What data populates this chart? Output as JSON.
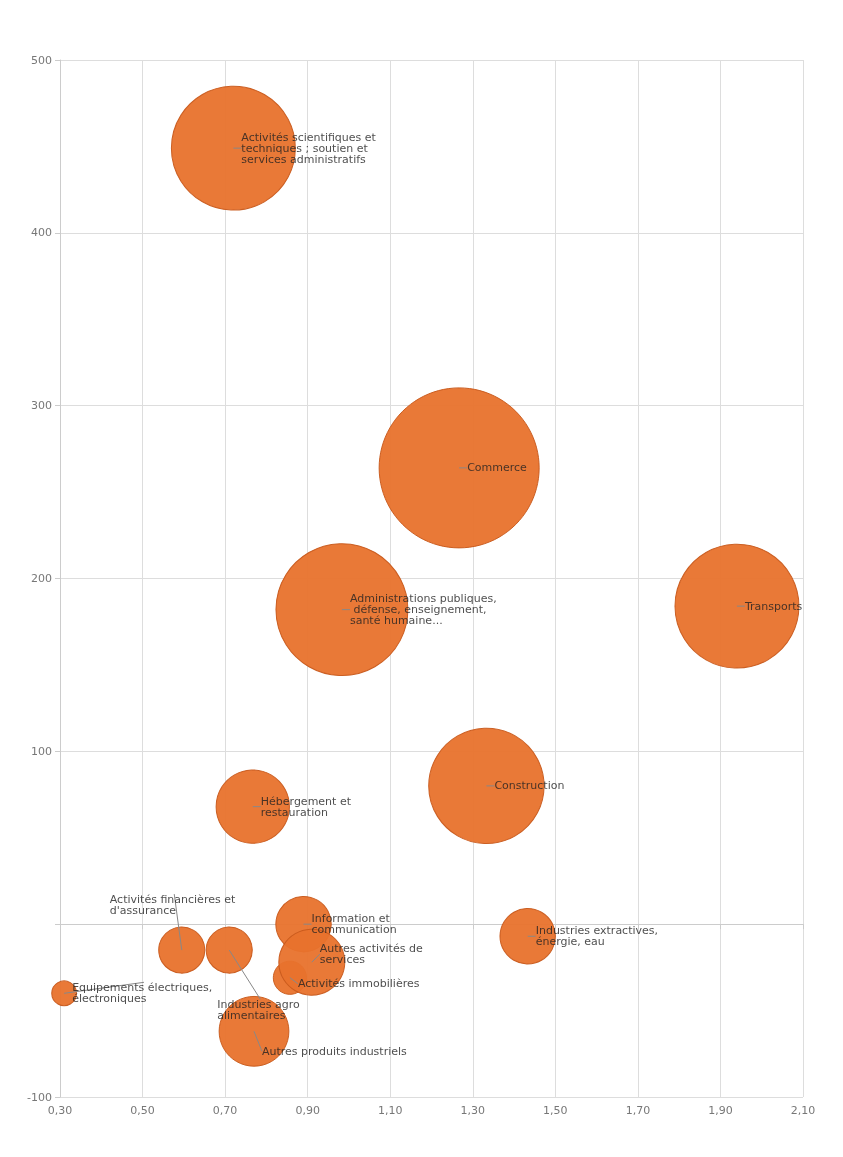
{
  "chart_data": {
    "type": "bubble",
    "x": [
      0.31,
      0.595,
      0.71,
      0.77,
      0.767,
      0.857,
      0.89,
      0.91,
      0.983,
      1.267,
      1.333,
      1.433,
      1.94,
      0.72
    ],
    "series": [
      {
        "color": "#e8722c",
        "values": [
          -40,
          -15,
          -15,
          -62,
          68,
          -31,
          0,
          -22,
          182,
          264,
          80,
          -7,
          184,
          449
        ],
        "sizes": [
          0.024,
          0.083,
          0.083,
          0.19,
          0.21,
          0.043,
          0.12,
          0.17,
          0.68,
          1,
          0.52,
          0.12,
          0.6,
          0.6
        ]
      }
    ],
    "xlim": [
      0.3,
      2.1
    ],
    "xticks": [
      {
        "value": 0.3,
        "label": "0,30"
      },
      {
        "value": 0.5,
        "label": "0,50"
      },
      {
        "value": 0.7,
        "label": "0,70"
      },
      {
        "value": 0.9,
        "label": "0,90"
      },
      {
        "value": 1.1,
        "label": "1,10"
      },
      {
        "value": 1.3,
        "label": "1,30"
      },
      {
        "value": 1.5,
        "label": "1,50"
      },
      {
        "value": 1.7,
        "label": "1,70"
      },
      {
        "value": 1.9,
        "label": "1,90"
      },
      {
        "value": 2.1,
        "label": "2,10"
      }
    ],
    "ylim": [
      -100,
      500
    ],
    "yticks": [
      -100,
      {
        "value": 0,
        "label": null
      },
      100,
      200,
      300,
      400,
      500
    ],
    "grid": true,
    "annotations": [
      {
        "text": "Equipements électriques, électroniques",
        "x": 0.31,
        "y": -40
      },
      {
        "text": "Activités financières et d'assurance",
        "x": 0.595,
        "y": -15
      },
      {
        "text": "Industries agro alimentaires",
        "x": 0.71,
        "y": -15
      },
      {
        "text": "Autres produits industriels",
        "x": 0.77,
        "y": -62
      },
      {
        "text": "Hébergement et restauration",
        "x": 0.767,
        "y": 68
      },
      {
        "text": "Activités immobilières",
        "x": 0.857,
        "y": -31
      },
      {
        "text": "Information et communication",
        "x": 0.89,
        "y": 0
      },
      {
        "text": "Autres activités de services",
        "x": 0.91,
        "y": -22
      },
      {
        "text": "Administrations publiques, défense, enseignement, santé humaine...",
        "x": 0.983,
        "y": 182
      },
      {
        "text": "Commerce",
        "x": 1.267,
        "y": 264
      },
      {
        "text": "Construction",
        "x": 1.333,
        "y": 80
      },
      {
        "text": "Industries extractives, énergie, eau",
        "x": 1.433,
        "y": -7
      },
      {
        "text": "Transports",
        "x": 1.94,
        "y": 184
      },
      {
        "text": "Activités scientifiques et techniques ; soutien et services administratifs",
        "x": 0.72,
        "y": 449
      }
    ]
  }
}
